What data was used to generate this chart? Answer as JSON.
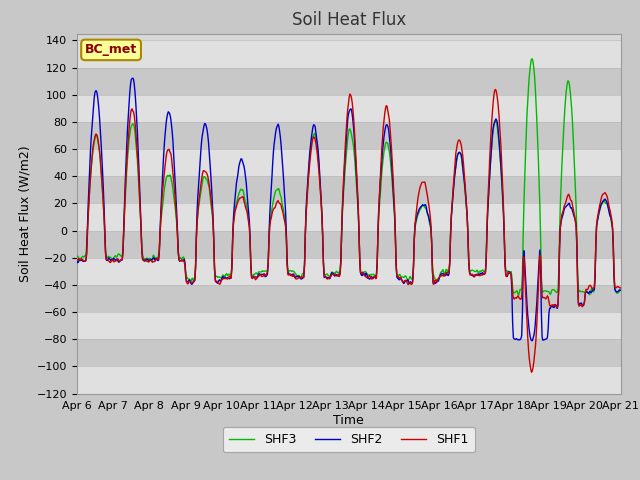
{
  "title": "Soil Heat Flux",
  "xlabel": "Time",
  "ylabel": "Soil Heat Flux (W/m2)",
  "ylim": [
    -120,
    145
  ],
  "yticks": [
    -120,
    -100,
    -80,
    -60,
    -40,
    -20,
    0,
    20,
    40,
    60,
    80,
    100,
    120,
    140
  ],
  "xtick_labels": [
    "Apr 6",
    "Apr 7",
    "Apr 8",
    "Apr 9",
    "Apr 10",
    "Apr 11",
    "Apr 12",
    "Apr 13",
    "Apr 14",
    "Apr 15",
    "Apr 16",
    "Apr 17",
    "Apr 18",
    "Apr 19",
    "Apr 20",
    "Apr 21"
  ],
  "line_colors": [
    "#cc0000",
    "#0000cc",
    "#00bb00"
  ],
  "line_labels": [
    "SHF1",
    "SHF2",
    "SHF3"
  ],
  "line_width": 1.0,
  "bg_color": "#c8c8c8",
  "plot_bg_color": "#d8d8d8",
  "band_light": "#e0e0e0",
  "band_dark": "#c8c8c8",
  "grid_color": "#bbbbbb",
  "annotation_text": "BC_met",
  "annotation_bg": "#ffff99",
  "annotation_border": "#aa8800",
  "title_fontsize": 12,
  "label_fontsize": 9,
  "tick_fontsize": 8
}
